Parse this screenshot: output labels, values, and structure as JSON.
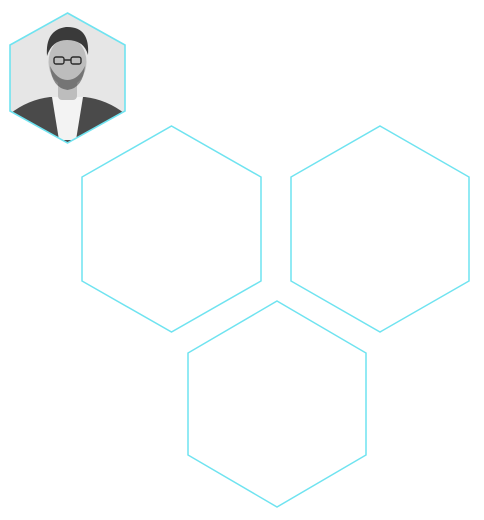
{
  "theme": {
    "background": "#ffffff",
    "hex_outline": "#6fe3f0",
    "photo_bg": "#e6e6e6",
    "skin": "#bdbdbd",
    "hair": "#3a3a3a",
    "suit": "#4a4a4a",
    "shirt": "#f3f3f3"
  },
  "profile": {
    "photo_icon": "person-photo-icon"
  },
  "hexagons": [
    {
      "name": "hex-tile-left"
    },
    {
      "name": "hex-tile-right"
    },
    {
      "name": "hex-tile-bottom"
    }
  ]
}
